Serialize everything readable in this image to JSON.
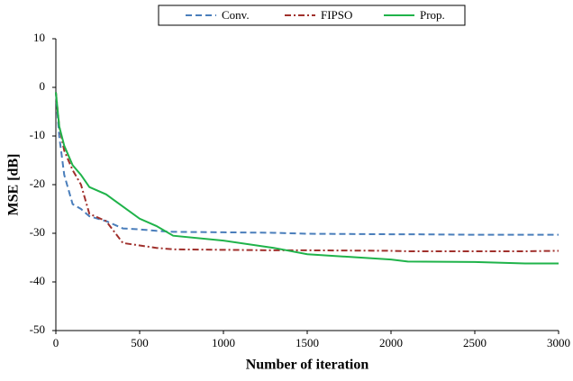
{
  "chart_data": {
    "type": "line",
    "x_label": "Number of iteration",
    "y_label": "MSE [dB]",
    "x": [
      0,
      20,
      50,
      100,
      150,
      200,
      300,
      400,
      500,
      600,
      700,
      1000,
      1300,
      1500,
      2000,
      2100,
      2500,
      2800,
      3000
    ],
    "series": [
      {
        "name": "Conv.",
        "color": "#4a7ebb",
        "dash": "dashed",
        "values": [
          -1,
          -10,
          -18,
          -24,
          -25,
          -26.5,
          -27.5,
          -29,
          -29.2,
          -29.5,
          -29.7,
          -29.8,
          -29.9,
          -30.1,
          -30.2,
          -30.2,
          -30.3,
          -30.3,
          -30.3
        ]
      },
      {
        "name": "FIPSO",
        "color": "#a0302c",
        "dash": "dashdot",
        "values": [
          -1,
          -8,
          -13,
          -17,
          -20,
          -26,
          -27.5,
          -32,
          -32.5,
          -33,
          -33.3,
          -33.4,
          -33.5,
          -33.5,
          -33.6,
          -33.7,
          -33.7,
          -33.7,
          -33.6
        ]
      },
      {
        "name": "Prop.",
        "color": "#1fb34a",
        "dash": "solid",
        "values": [
          -1,
          -8,
          -12,
          -16,
          -18,
          -20.5,
          -22,
          -24.5,
          -27,
          -28.5,
          -30.5,
          -31.5,
          -33,
          -34.3,
          -35.4,
          -35.8,
          -35.9,
          -36.2,
          -36.2
        ]
      }
    ],
    "xlim": [
      0,
      3000
    ],
    "xticks": [
      0,
      500,
      1000,
      1500,
      2000,
      2500,
      3000
    ],
    "ylim": [
      -50,
      10
    ],
    "yticks": [
      -50,
      -40,
      -30,
      -20,
      -10,
      0,
      10
    ],
    "grid": false,
    "legend": "top"
  }
}
